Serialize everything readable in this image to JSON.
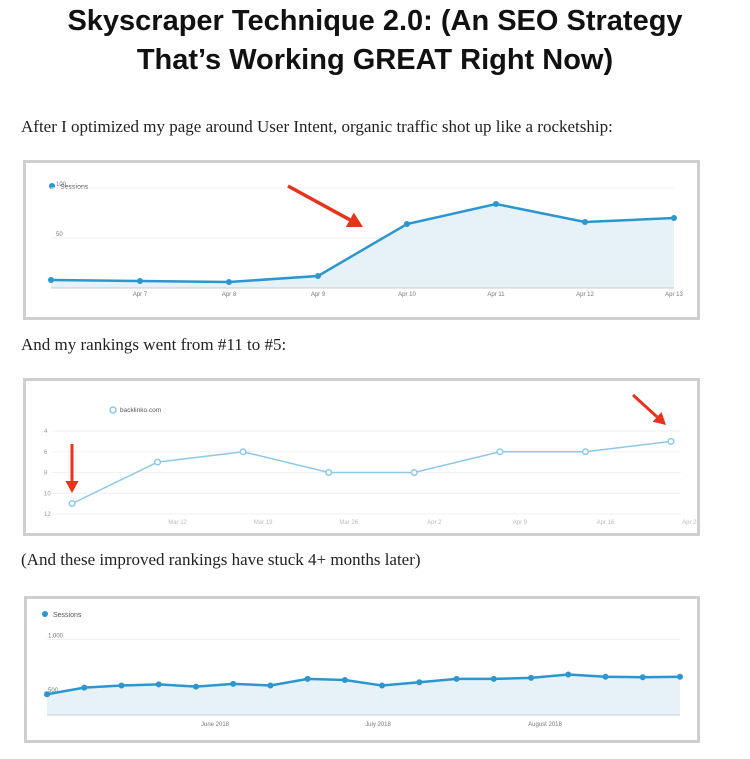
{
  "article": {
    "title_line1": "Skyscraper Technique 2.0: (An SEO Strategy",
    "title_line2": "That’s Working GREAT Right Now)",
    "para1": "After I optimized my page around User Intent, organic traffic shot up like a rocketship:",
    "para2": "And my rankings went from #11 to #5:",
    "para3": "(And these improved rankings have stuck 4+ months later)"
  },
  "colors": {
    "sessions_line": "#2b96cf",
    "sessions_fill": "#e6f1f8",
    "rank_line": "#8cc8ea",
    "arrow": "#e8331c"
  },
  "chart_data": [
    {
      "type": "area",
      "legend": "Sessions",
      "categories": [
        "",
        "Apr 7",
        "Apr 8",
        "Apr 9",
        "Apr 10",
        "Apr 11",
        "Apr 12",
        "Apr 13"
      ],
      "values": [
        8,
        7,
        6,
        12,
        64,
        84,
        66,
        70
      ],
      "yticks": [
        100,
        50
      ],
      "ylim": [
        0,
        110
      ],
      "annotation": "red arrow pointing to Apr 10 rise"
    },
    {
      "type": "line",
      "legend": "backlinko.com",
      "categories": [
        "",
        "Mar 12",
        "Mar 19",
        "Mar 26",
        "Apr 2",
        "Apr 9",
        "Apr 16",
        "Apr 23"
      ],
      "values": [
        11,
        7,
        6,
        8,
        8,
        6,
        6,
        5
      ],
      "yticks": [
        4,
        6,
        8,
        10,
        12
      ],
      "ylim": [
        12,
        4
      ],
      "annotation": "red arrows pointing to first and last points"
    },
    {
      "type": "area",
      "legend": "Sessions",
      "xlabels": [
        "June 2018",
        "July 2018",
        "August 2018"
      ],
      "values": [
        500,
        560,
        580,
        590,
        570,
        595,
        580,
        640,
        630,
        580,
        610,
        640,
        640,
        650,
        680,
        660,
        655,
        660
      ],
      "yticks": [
        "1,000",
        "500"
      ],
      "ylim": [
        310,
        1060
      ]
    }
  ]
}
